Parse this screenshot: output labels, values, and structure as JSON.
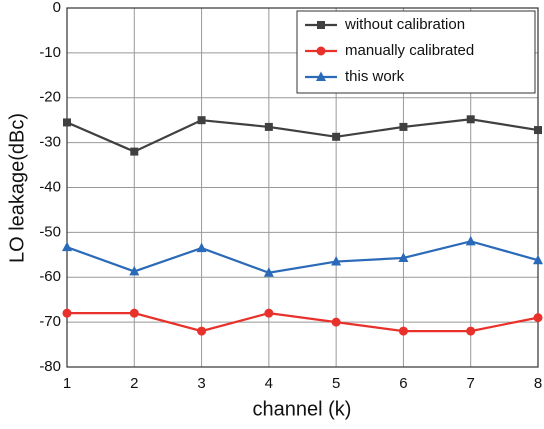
{
  "chart_data": {
    "type": "line",
    "x_label": "channel (k)",
    "y_label": "LO leakage(dBc)",
    "x": [
      1,
      2,
      3,
      4,
      5,
      6,
      7,
      8
    ],
    "series": [
      {
        "name": "without calibration",
        "color": "#404040",
        "marker": "square",
        "values": [
          -25.5,
          -32,
          -25,
          -26.5,
          -28.7,
          -26.5,
          -24.8,
          -27.2
        ]
      },
      {
        "name": "manually calibrated",
        "color": "#e8312a",
        "marker": "circle",
        "values": [
          -68,
          -68,
          -72,
          -68,
          -70,
          -72,
          -72,
          -69
        ]
      },
      {
        "name": "this work",
        "color": "#2a6ab8",
        "marker": "triangle",
        "values": [
          -53.3,
          -58.7,
          -53.5,
          -59,
          -56.5,
          -55.7,
          -52,
          -56.2
        ]
      }
    ],
    "xlim": [
      1,
      8
    ],
    "xticks": [
      1,
      2,
      3,
      4,
      5,
      6,
      7,
      8
    ],
    "ylim": [
      -80,
      0
    ],
    "yticks": [
      -80,
      -70,
      -60,
      -50,
      -40,
      -30,
      -20,
      -10,
      0
    ],
    "grid": true,
    "legend": "upper-right"
  }
}
